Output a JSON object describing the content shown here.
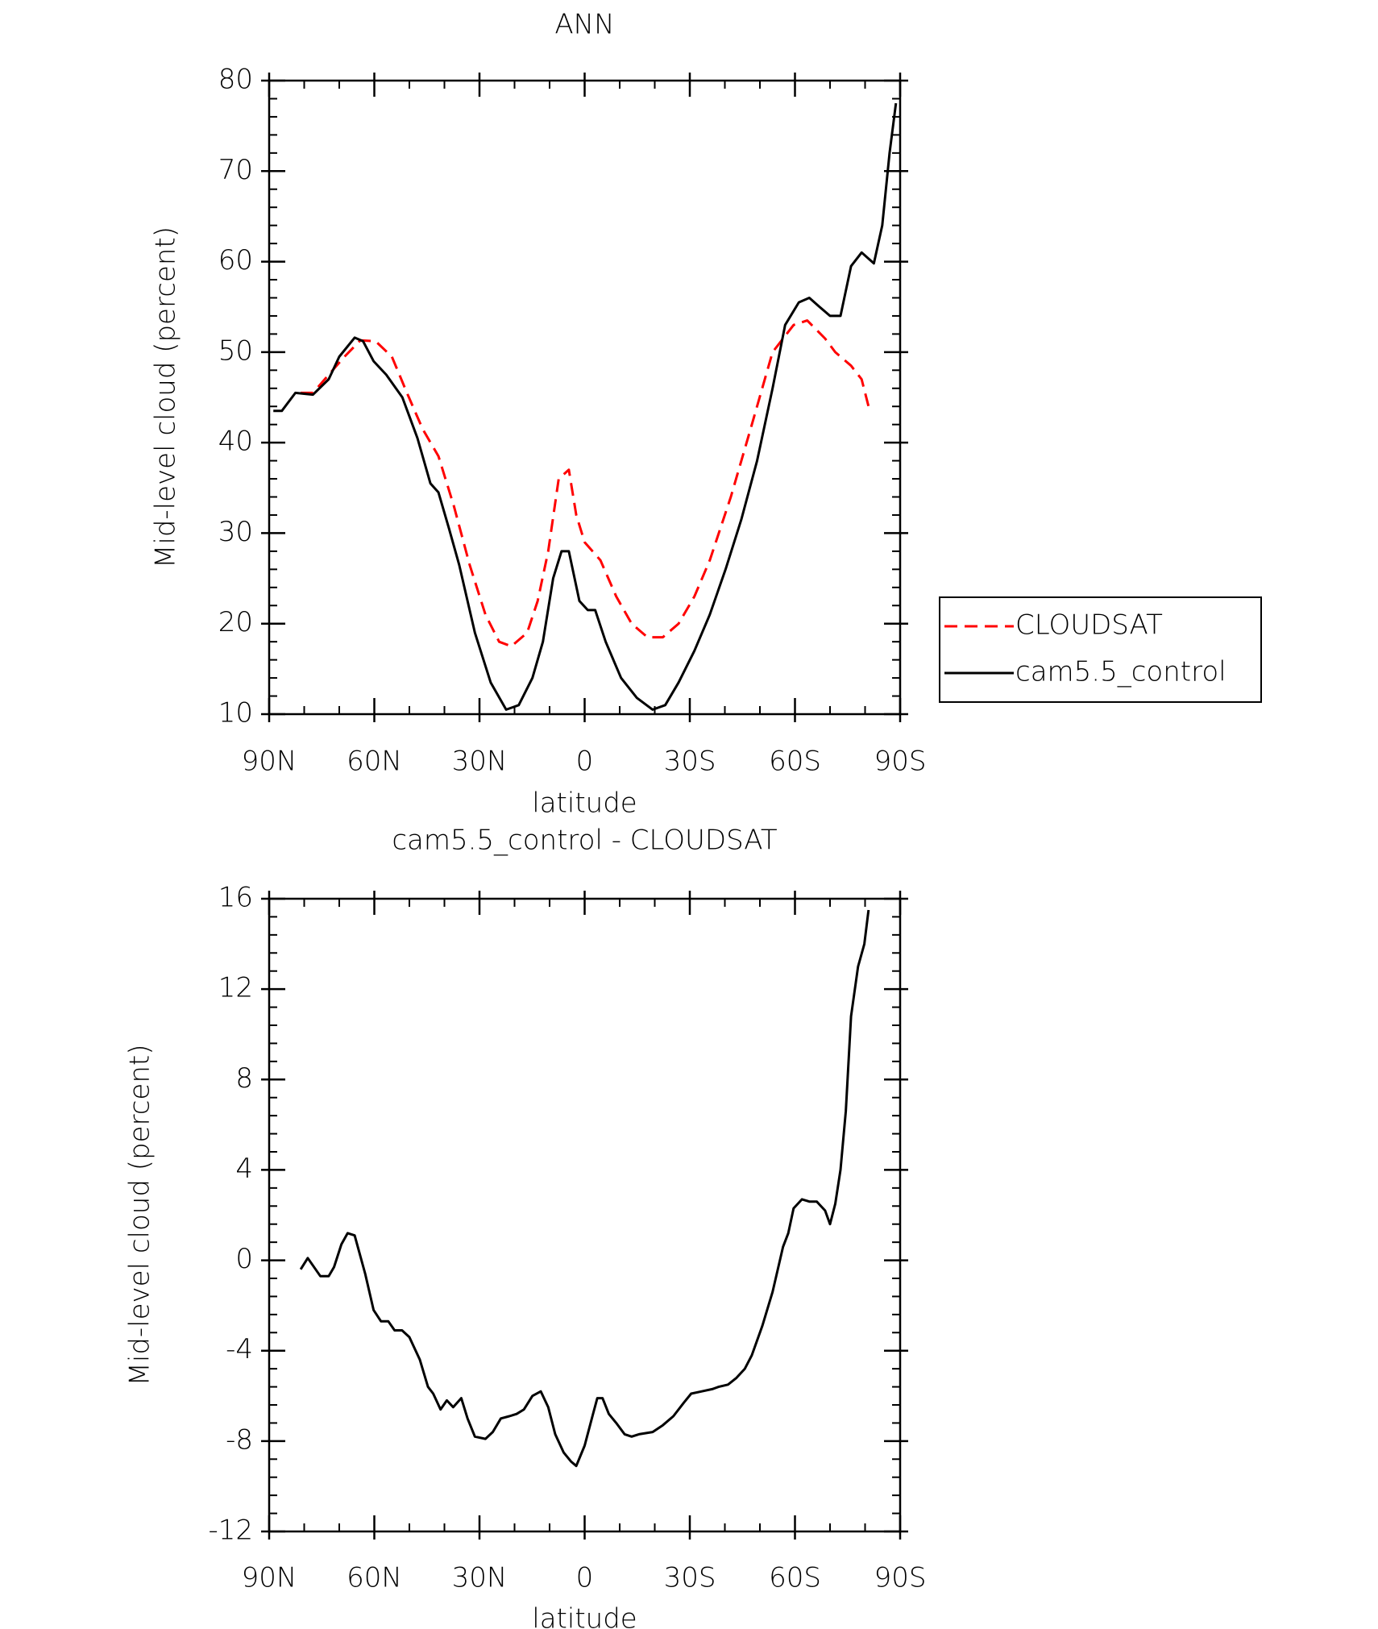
{
  "chart_data": [
    {
      "type": "line",
      "title": "ANN",
      "xlabel": "latitude",
      "ylabel": "Mid-level cloud (percent)",
      "xlim": [
        90,
        -90
      ],
      "xticks": [
        {
          "value": 90,
          "label": "90N"
        },
        {
          "value": 60,
          "label": "60N"
        },
        {
          "value": 30,
          "label": "30N"
        },
        0,
        {
          "value": -30,
          "label": "30S"
        },
        {
          "value": -60,
          "label": "60S"
        },
        {
          "value": -90,
          "label": "90S"
        }
      ],
      "ylim": [
        10,
        80
      ],
      "yticks": [
        10,
        20,
        30,
        40,
        50,
        60,
        70,
        80
      ],
      "legend": "right",
      "series": [
        {
          "name": "CLOUDSAT",
          "color": "#ff0000",
          "dash": true,
          "x": [
            81,
            77.5,
            73,
            68.5,
            64,
            59.6,
            55,
            50.7,
            46.2,
            41.7,
            37.3,
            32.8,
            28.3,
            24.4,
            20.9,
            16.4,
            13.4,
            10.4,
            7.4,
            4.5,
            2.4,
            0,
            -4.5,
            -9,
            -13.4,
            -17.9,
            -22.3,
            -26.8,
            -31.3,
            -35.7,
            -41.7,
            -47.7,
            -53.6,
            -59.6,
            -63.5,
            -68.6,
            -71.5,
            -76,
            -79,
            -81
          ],
          "values": [
            45.5,
            45.5,
            47.5,
            49.5,
            51.3,
            51.2,
            49.5,
            45.5,
            41.5,
            38.5,
            33,
            26.5,
            21,
            18,
            17.5,
            19,
            22.5,
            28,
            36,
            37,
            32,
            29,
            27,
            23,
            20,
            18.5,
            18.5,
            20,
            23,
            27,
            34,
            42,
            50,
            53,
            53.5,
            51.5,
            50,
            48.5,
            47,
            44
          ]
        },
        {
          "name": "cam5.5_control",
          "color": "#000000",
          "dash": false,
          "x": [
            88.8,
            86.4,
            82.5,
            77.5,
            73,
            70,
            65.6,
            63.2,
            60.2,
            56.6,
            52,
            47.7,
            44,
            41.7,
            38.7,
            35.8,
            31.3,
            26.8,
            22.4,
            18.8,
            14.9,
            11.9,
            9,
            6.6,
            4.5,
            1.5,
            -0.9,
            -3,
            -6,
            -10.4,
            -14.9,
            -19.4,
            -23,
            -26.8,
            -31.3,
            -35.7,
            -40.2,
            -44.7,
            -49.2,
            -53.6,
            -57.2,
            -61.1,
            -64.1,
            -67,
            -70,
            -73,
            -76,
            -79,
            -82.5,
            -84.9,
            -87,
            -88.8
          ],
          "values": [
            43.5,
            43.5,
            45.5,
            45.3,
            47,
            49.5,
            51.6,
            51.2,
            49,
            47.5,
            45,
            40.5,
            35.5,
            34.5,
            30.5,
            26.5,
            19,
            13.5,
            10.5,
            11,
            14,
            18,
            25,
            28,
            28,
            22.5,
            21.5,
            21.5,
            18,
            14,
            11.8,
            10.5,
            11,
            13.5,
            17,
            21,
            26,
            31.5,
            38,
            46,
            53,
            55.5,
            56,
            55,
            54,
            54,
            59.5,
            61,
            59.8,
            64,
            72,
            77.5
          ]
        }
      ]
    },
    {
      "type": "line",
      "title": "cam5.5_control - CLOUDSAT",
      "xlabel": "latitude",
      "ylabel": "Mid-level cloud (percent)",
      "xlim": [
        90,
        -90
      ],
      "xticks": [
        {
          "value": 90,
          "label": "90N"
        },
        {
          "value": 60,
          "label": "60N"
        },
        {
          "value": 30,
          "label": "30N"
        },
        0,
        {
          "value": -30,
          "label": "30S"
        },
        {
          "value": -60,
          "label": "60S"
        },
        {
          "value": -90,
          "label": "90S"
        }
      ],
      "ylim": [
        -12,
        16
      ],
      "yticks": [
        -12,
        -8,
        -4,
        0,
        4,
        8,
        12,
        16
      ],
      "series": [
        {
          "color": "#000000",
          "dash": false,
          "x": [
            81,
            79,
            75.4,
            73,
            71.5,
            69.4,
            67.6,
            65.6,
            62.6,
            60.2,
            58.1,
            56,
            54.2,
            52.1,
            50,
            47,
            44.7,
            43.2,
            41.1,
            39.3,
            37.5,
            35.2,
            33.4,
            31.3,
            28.3,
            26.2,
            23.9,
            21.5,
            19.4,
            17.3,
            14.9,
            12.5,
            10.4,
            8.4,
            6,
            3.9,
            2.4,
            0,
            -2.4,
            -3.6,
            -5.1,
            -6.9,
            -9,
            -11.4,
            -13.4,
            -15.5,
            -19.4,
            -22.3,
            -25.3,
            -28.3,
            -30.4,
            -33.4,
            -36.4,
            -38.2,
            -40.9,
            -43.3,
            -45.7,
            -47.7,
            -50.7,
            -53.6,
            -56.6,
            -58.1,
            -59.6,
            -62,
            -64.1,
            -66.2,
            -68.6,
            -70,
            -71.5,
            -73,
            -74.5,
            -76,
            -78,
            -79.8,
            -81
          ],
          "values": [
            -0.4,
            0.1,
            -0.7,
            -0.7,
            -0.3,
            0.7,
            1.2,
            1.1,
            -0.6,
            -2.2,
            -2.7,
            -2.7,
            -3.1,
            -3.1,
            -3.4,
            -4.4,
            -5.6,
            -5.9,
            -6.6,
            -6.2,
            -6.5,
            -6.1,
            -7,
            -7.8,
            -7.9,
            -7.6,
            -7,
            -6.9,
            -6.8,
            -6.6,
            -6,
            -5.8,
            -6.5,
            -7.7,
            -8.5,
            -8.9,
            -9.1,
            -8.2,
            -6.8,
            -6.1,
            -6.1,
            -6.8,
            -7.2,
            -7.7,
            -7.8,
            -7.7,
            -7.6,
            -7.3,
            -6.9,
            -6.3,
            -5.9,
            -5.8,
            -5.7,
            -5.6,
            -5.5,
            -5.2,
            -4.8,
            -4.2,
            -2.9,
            -1.4,
            0.6,
            1.2,
            2.3,
            2.7,
            2.6,
            2.6,
            2.2,
            1.6,
            2.5,
            4,
            6.6,
            10.8,
            13,
            14,
            15.5
          ]
        }
      ]
    }
  ]
}
